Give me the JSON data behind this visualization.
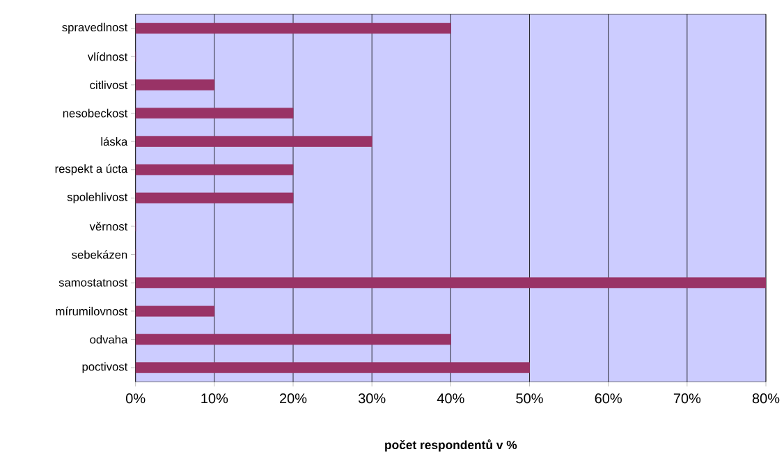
{
  "chart_data": {
    "type": "bar",
    "orientation": "horizontal",
    "categories": [
      "spravedlnost",
      "vlídnost",
      "citlivost",
      "nesobeckost",
      "láska",
      "respekt a úcta",
      "spolehlivost",
      "věrnost",
      "sebekázen",
      "samostatnost",
      "mírumilovnost",
      "odvaha",
      "poctivost"
    ],
    "values": [
      40,
      0,
      10,
      20,
      30,
      20,
      20,
      0,
      0,
      80,
      10,
      40,
      50
    ],
    "color": "#993366",
    "xlabel": "počet respondentů v %",
    "xlim": [
      0,
      80
    ],
    "xticks": [
      {
        "value": 0,
        "label": "0%"
      },
      {
        "value": 10,
        "label": "10%"
      },
      {
        "value": 20,
        "label": "20%"
      },
      {
        "value": 30,
        "label": "30%"
      },
      {
        "value": 40,
        "label": "40%"
      },
      {
        "value": 50,
        "label": "50%"
      },
      {
        "value": 60,
        "label": "60%"
      },
      {
        "value": 70,
        "label": "70%"
      },
      {
        "value": 80,
        "label": "80%"
      }
    ],
    "grid": "x"
  }
}
